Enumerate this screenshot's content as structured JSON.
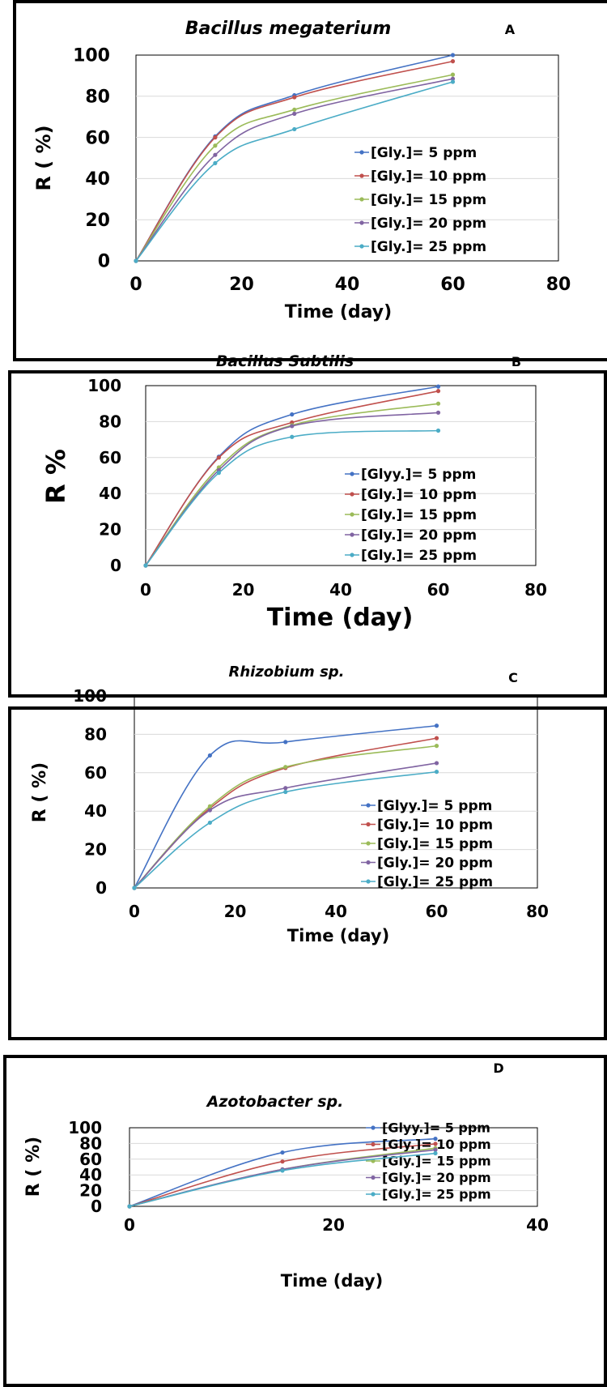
{
  "chart_data": [
    {
      "type": "line",
      "panel": "A",
      "title": "Bacillus megaterium",
      "xlabel": "Time (day)",
      "ylabel": "R ( %)",
      "xlim": [
        0,
        80
      ],
      "ylim": [
        0,
        100
      ],
      "x_ticks": [
        "0",
        "20",
        "40",
        "60",
        "80"
      ],
      "y_ticks": [
        "0",
        "20",
        "40",
        "60",
        "80",
        "100"
      ],
      "x": [
        0,
        15,
        30,
        60
      ],
      "legend_position": "right",
      "series": [
        {
          "name": "[Gly.]= 5 ppm",
          "color": "#4472C4",
          "values": [
            0,
            60.5,
            80.5,
            100
          ]
        },
        {
          "name": "[Gly.]= 10 ppm",
          "color": "#C0504D",
          "values": [
            0,
            60,
            79.5,
            97
          ]
        },
        {
          "name": "[Gly.]= 15 ppm",
          "color": "#9BBB59",
          "values": [
            0,
            56,
            73.5,
            90.5
          ]
        },
        {
          "name": "[Gly.]= 20 ppm",
          "color": "#8064A2",
          "values": [
            0,
            51.5,
            71.5,
            88.5
          ]
        },
        {
          "name": "[Gly.]= 25 ppm",
          "color": "#4BACC6",
          "values": [
            0,
            47.5,
            64,
            87
          ]
        }
      ]
    },
    {
      "type": "line",
      "panel": "B",
      "title": "Bacillus Subtilis",
      "xlabel": "Time (day)",
      "ylabel": "R %",
      "xlim": [
        0,
        80
      ],
      "ylim": [
        0,
        100
      ],
      "x_ticks": [
        "0",
        "20",
        "40",
        "60",
        "80"
      ],
      "y_ticks": [
        "0",
        "20",
        "40",
        "60",
        "80",
        "100"
      ],
      "x": [
        0,
        15,
        30,
        60
      ],
      "legend_position": "right",
      "series": [
        {
          "name": "[Glyy.]= 5 ppm",
          "color": "#4472C4",
          "values": [
            0,
            60.5,
            84,
            99.5
          ]
        },
        {
          "name": "[Gly.]= 10 ppm",
          "color": "#C0504D",
          "values": [
            0,
            60,
            79.5,
            97
          ]
        },
        {
          "name": "[Gly.]= 15 ppm",
          "color": "#9BBB59",
          "values": [
            0,
            54.5,
            78,
            90
          ]
        },
        {
          "name": "[Gly.]= 20 ppm",
          "color": "#8064A2",
          "values": [
            0,
            53,
            77.5,
            85
          ]
        },
        {
          "name": "[Gly.]= 25 ppm",
          "color": "#4BACC6",
          "values": [
            0,
            51.5,
            71.5,
            75
          ]
        }
      ]
    },
    {
      "type": "line",
      "panel": "C",
      "title": "Rhizobium sp.",
      "xlabel": "Time (day)",
      "ylabel": "R ( %)",
      "xlim": [
        0,
        80
      ],
      "ylim": [
        0,
        100
      ],
      "x_ticks": [
        "0",
        "20",
        "40",
        "60",
        "80"
      ],
      "y_ticks": [
        "0",
        "20",
        "40",
        "60",
        "80",
        "100"
      ],
      "x": [
        0,
        15,
        30,
        60
      ],
      "legend_position": "right",
      "series": [
        {
          "name": "[Glyy.]= 5 ppm",
          "color": "#4472C4",
          "values": [
            0,
            69,
            76,
            84.5
          ]
        },
        {
          "name": "[Gly.]= 10 ppm",
          "color": "#C0504D",
          "values": [
            0,
            41.5,
            62.5,
            78
          ]
        },
        {
          "name": "[Gly.]= 15 ppm",
          "color": "#9BBB59",
          "values": [
            0,
            42.5,
            63,
            74
          ]
        },
        {
          "name": "[Gly.]= 20 ppm",
          "color": "#8064A2",
          "values": [
            0,
            40.5,
            52,
            65
          ]
        },
        {
          "name": "[Gly.]= 25 ppm",
          "color": "#4BACC6",
          "values": [
            0,
            34,
            50,
            60.5
          ]
        }
      ]
    },
    {
      "type": "line",
      "panel": "D",
      "title": "Azotobacter sp.",
      "xlabel": "Time (day)",
      "ylabel": "R ( %)",
      "xlim": [
        0,
        40
      ],
      "ylim": [
        0,
        100
      ],
      "x_ticks": [
        "0",
        "20",
        "40"
      ],
      "y_ticks": [
        "0",
        "20",
        "40",
        "60",
        "80",
        "100"
      ],
      "x": [
        0,
        15,
        30
      ],
      "legend_position": "right",
      "series": [
        {
          "name": "[Glyy.]= 5 ppm",
          "color": "#4472C4",
          "values": [
            0,
            68.5,
            86
          ]
        },
        {
          "name": "[Gly.]= 10 ppm",
          "color": "#C0504D",
          "values": [
            0,
            57,
            79.5
          ]
        },
        {
          "name": "[Gly.]= 15 ppm",
          "color": "#9BBB59",
          "values": [
            0,
            47,
            74
          ]
        },
        {
          "name": "[Gly.]= 20 ppm",
          "color": "#8064A2",
          "values": [
            0,
            47,
            72
          ]
        },
        {
          "name": "[Gly.]= 25 ppm",
          "color": "#4BACC6",
          "values": [
            0,
            45.5,
            67.5
          ]
        }
      ]
    }
  ]
}
